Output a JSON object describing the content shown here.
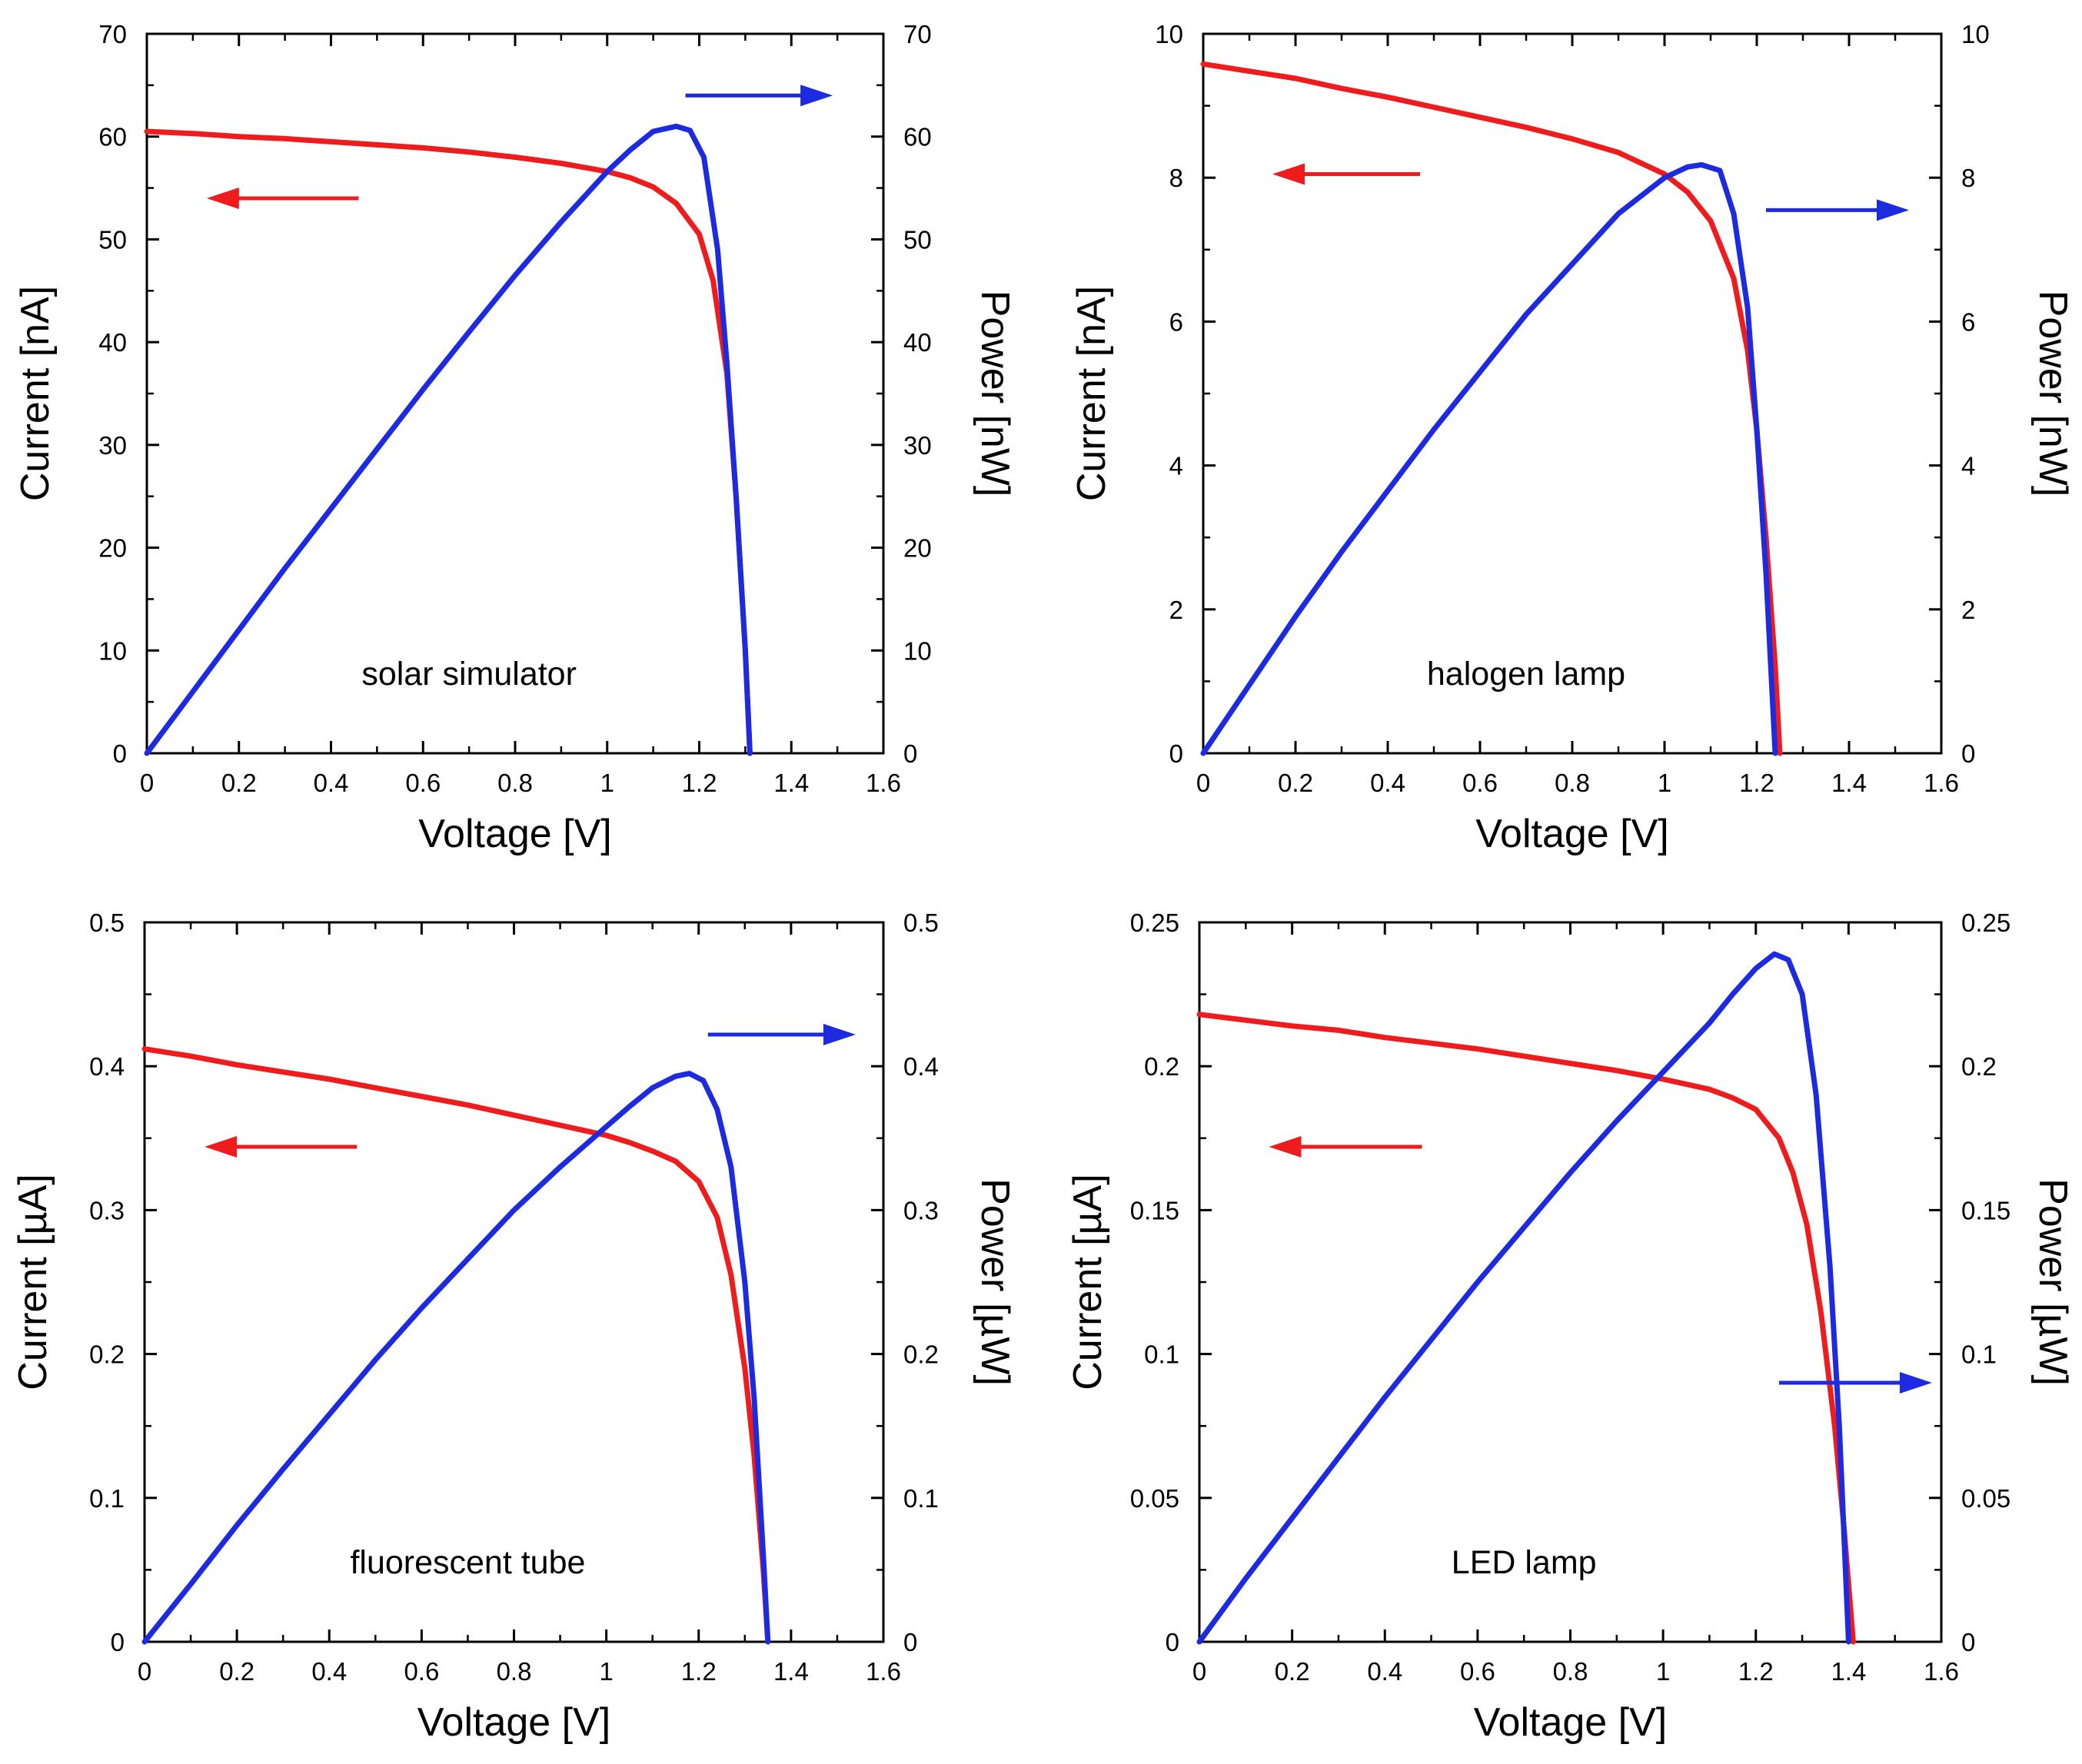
{
  "chart_data": [
    {
      "type": "line",
      "annotation": "solar simulator",
      "xlabel": "Voltage [V]",
      "ylabel_left": "Current [nA]",
      "ylabel_right": "Power [nW]",
      "xlim": [
        0,
        1.6
      ],
      "ylim": [
        0,
        70
      ],
      "xticks": [
        "0",
        "0.2",
        "0.4",
        "0.6",
        "0.8",
        "1",
        "1.2",
        "1.4",
        "1.6"
      ],
      "yticks": [
        "0",
        "10",
        "20",
        "30",
        "40",
        "50",
        "60",
        "70"
      ],
      "yticks_right": [
        "0",
        "10",
        "20",
        "30",
        "40",
        "50",
        "60",
        "70"
      ],
      "series": [
        {
          "name": "Current",
          "axis": "left",
          "color": "#ee1c1c",
          "x": [
            0,
            0.1,
            0.2,
            0.3,
            0.4,
            0.5,
            0.6,
            0.7,
            0.8,
            0.9,
            1.0,
            1.05,
            1.1,
            1.15,
            1.2,
            1.23,
            1.26,
            1.28,
            1.3,
            1.31
          ],
          "y": [
            60.5,
            60.3,
            60.0,
            59.8,
            59.5,
            59.2,
            58.9,
            58.5,
            58.0,
            57.4,
            56.6,
            56.0,
            55.1,
            53.5,
            50.5,
            46.0,
            37.0,
            25.0,
            10.0,
            0
          ]
        },
        {
          "name": "Power",
          "axis": "right",
          "color": "#1c2be0",
          "x": [
            0,
            0.1,
            0.2,
            0.3,
            0.4,
            0.5,
            0.6,
            0.7,
            0.8,
            0.9,
            1.0,
            1.05,
            1.1,
            1.15,
            1.18,
            1.21,
            1.24,
            1.26,
            1.28,
            1.3,
            1.31
          ],
          "y": [
            0,
            6.0,
            12.0,
            18.0,
            23.8,
            29.6,
            35.4,
            41.0,
            46.5,
            51.7,
            56.6,
            58.7,
            60.5,
            61.0,
            60.6,
            58.0,
            49.0,
            38.0,
            25.0,
            10.0,
            0
          ]
        }
      ],
      "arrows": [
        {
          "color": "#ee1c1c",
          "direction": "left",
          "x_start": 0.46,
          "x_end": 0.13,
          "y": 54
        },
        {
          "color": "#1c2be0",
          "direction": "right",
          "x_start": 1.17,
          "x_end": 1.49,
          "y": 64
        }
      ]
    },
    {
      "type": "line",
      "annotation": "halogen lamp",
      "xlabel": "Voltage [V]",
      "ylabel_left": "Current [nA]",
      "ylabel_right": "Power [nW]",
      "xlim": [
        0,
        1.6
      ],
      "ylim": [
        0,
        10
      ],
      "xticks": [
        "0",
        "0.2",
        "0.4",
        "0.6",
        "0.8",
        "1",
        "1.2",
        "1.4",
        "1.6"
      ],
      "yticks": [
        "0",
        "2",
        "4",
        "6",
        "8",
        "10"
      ],
      "yticks_right": [
        "0",
        "2",
        "4",
        "6",
        "8",
        "10"
      ],
      "series": [
        {
          "name": "Current",
          "axis": "left",
          "color": "#ee1c1c",
          "x": [
            0,
            0.1,
            0.2,
            0.3,
            0.4,
            0.5,
            0.6,
            0.7,
            0.8,
            0.9,
            1.0,
            1.05,
            1.1,
            1.15,
            1.18,
            1.2,
            1.22,
            1.24,
            1.25
          ],
          "y": [
            9.58,
            9.48,
            9.38,
            9.24,
            9.12,
            8.98,
            8.84,
            8.7,
            8.54,
            8.35,
            8.05,
            7.8,
            7.4,
            6.6,
            5.6,
            4.5,
            3.0,
            1.2,
            0
          ]
        },
        {
          "name": "Power",
          "axis": "right",
          "color": "#1c2be0",
          "x": [
            0,
            0.1,
            0.2,
            0.3,
            0.4,
            0.5,
            0.6,
            0.7,
            0.8,
            0.9,
            1.0,
            1.05,
            1.08,
            1.12,
            1.15,
            1.18,
            1.2,
            1.22,
            1.24
          ],
          "y": [
            0,
            0.95,
            1.9,
            2.8,
            3.65,
            4.5,
            5.3,
            6.1,
            6.8,
            7.5,
            8.0,
            8.15,
            8.18,
            8.1,
            7.5,
            6.2,
            4.5,
            2.5,
            0
          ]
        }
      ],
      "arrows": [
        {
          "color": "#ee1c1c",
          "direction": "left",
          "x_start": 0.47,
          "x_end": 0.15,
          "y": 8.05
        },
        {
          "color": "#1c2be0",
          "direction": "right",
          "x_start": 1.22,
          "x_end": 1.53,
          "y": 7.55
        }
      ]
    },
    {
      "type": "line",
      "annotation": "fluorescent tube",
      "xlabel": "Voltage [V]",
      "ylabel_left": "Current [µA]",
      "ylabel_right": "Power [µW]",
      "xlim": [
        0,
        1.6
      ],
      "ylim": [
        0,
        0.5
      ],
      "xticks": [
        "0",
        "0.2",
        "0.4",
        "0.6",
        "0.8",
        "1",
        "1.2",
        "1.4",
        "1.6"
      ],
      "yticks": [
        "0",
        "0.1",
        "0.2",
        "0.3",
        "0.4",
        "0.5"
      ],
      "yticks_right": [
        "0",
        "0.1",
        "0.2",
        "0.3",
        "0.4",
        "0.5"
      ],
      "series": [
        {
          "name": "Current",
          "axis": "left",
          "color": "#ee1c1c",
          "x": [
            0,
            0.1,
            0.2,
            0.3,
            0.4,
            0.5,
            0.6,
            0.7,
            0.8,
            0.9,
            1.0,
            1.05,
            1.1,
            1.15,
            1.2,
            1.24,
            1.27,
            1.3,
            1.32,
            1.34,
            1.35
          ],
          "y": [
            0.412,
            0.407,
            0.401,
            0.396,
            0.391,
            0.385,
            0.379,
            0.373,
            0.366,
            0.359,
            0.352,
            0.347,
            0.341,
            0.334,
            0.32,
            0.295,
            0.255,
            0.19,
            0.13,
            0.05,
            0
          ]
        },
        {
          "name": "Power",
          "axis": "right",
          "color": "#1c2be0",
          "x": [
            0,
            0.1,
            0.2,
            0.3,
            0.4,
            0.5,
            0.6,
            0.7,
            0.8,
            0.9,
            1.0,
            1.05,
            1.1,
            1.15,
            1.18,
            1.21,
            1.24,
            1.27,
            1.3,
            1.32,
            1.34,
            1.35
          ],
          "y": [
            0,
            0.04,
            0.081,
            0.12,
            0.158,
            0.196,
            0.232,
            0.266,
            0.3,
            0.33,
            0.358,
            0.372,
            0.385,
            0.393,
            0.395,
            0.39,
            0.37,
            0.33,
            0.25,
            0.17,
            0.06,
            0
          ]
        }
      ],
      "arrows": [
        {
          "color": "#ee1c1c",
          "direction": "left",
          "x_start": 0.46,
          "x_end": 0.13,
          "y": 0.344
        },
        {
          "color": "#1c2be0",
          "direction": "right",
          "x_start": 1.22,
          "x_end": 1.54,
          "y": 0.422
        }
      ]
    },
    {
      "type": "line",
      "annotation": "LED lamp",
      "xlabel": "Voltage [V]",
      "ylabel_left": "Current [µA]",
      "ylabel_right": "Power [µW]",
      "xlim": [
        0,
        1.6
      ],
      "ylim": [
        0,
        0.25
      ],
      "xticks": [
        "0",
        "0.2",
        "0.4",
        "0.6",
        "0.8",
        "1",
        "1.2",
        "1.4",
        "1.6"
      ],
      "yticks": [
        "0",
        "0.05",
        "0.1",
        "0.15",
        "0.2",
        "0.25"
      ],
      "yticks_right": [
        "0",
        "0.05",
        "0.1",
        "0.15",
        "0.2",
        "0.25"
      ],
      "series": [
        {
          "name": "Current",
          "axis": "left",
          "color": "#ee1c1c",
          "x": [
            0,
            0.1,
            0.2,
            0.3,
            0.4,
            0.5,
            0.6,
            0.7,
            0.8,
            0.9,
            1.0,
            1.1,
            1.15,
            1.2,
            1.25,
            1.28,
            1.31,
            1.34,
            1.37,
            1.39,
            1.41
          ],
          "y": [
            0.218,
            0.216,
            0.214,
            0.2125,
            0.21,
            0.208,
            0.206,
            0.2035,
            0.201,
            0.1985,
            0.1955,
            0.192,
            0.189,
            0.185,
            0.175,
            0.163,
            0.145,
            0.115,
            0.075,
            0.04,
            0
          ]
        },
        {
          "name": "Power",
          "axis": "right",
          "color": "#1c2be0",
          "x": [
            0,
            0.1,
            0.2,
            0.3,
            0.4,
            0.5,
            0.6,
            0.7,
            0.8,
            0.9,
            1.0,
            1.1,
            1.15,
            1.2,
            1.24,
            1.27,
            1.3,
            1.33,
            1.36,
            1.38,
            1.4
          ],
          "y": [
            0,
            0.022,
            0.043,
            0.064,
            0.085,
            0.105,
            0.125,
            0.144,
            0.163,
            0.181,
            0.198,
            0.215,
            0.225,
            0.234,
            0.239,
            0.237,
            0.225,
            0.19,
            0.13,
            0.075,
            0
          ]
        }
      ],
      "arrows": [
        {
          "color": "#ee1c1c",
          "direction": "left",
          "x_start": 0.48,
          "x_end": 0.15,
          "y": 0.172
        },
        {
          "color": "#1c2be0",
          "direction": "right",
          "x_start": 1.25,
          "x_end": 1.58,
          "y": 0.09
        }
      ]
    }
  ]
}
